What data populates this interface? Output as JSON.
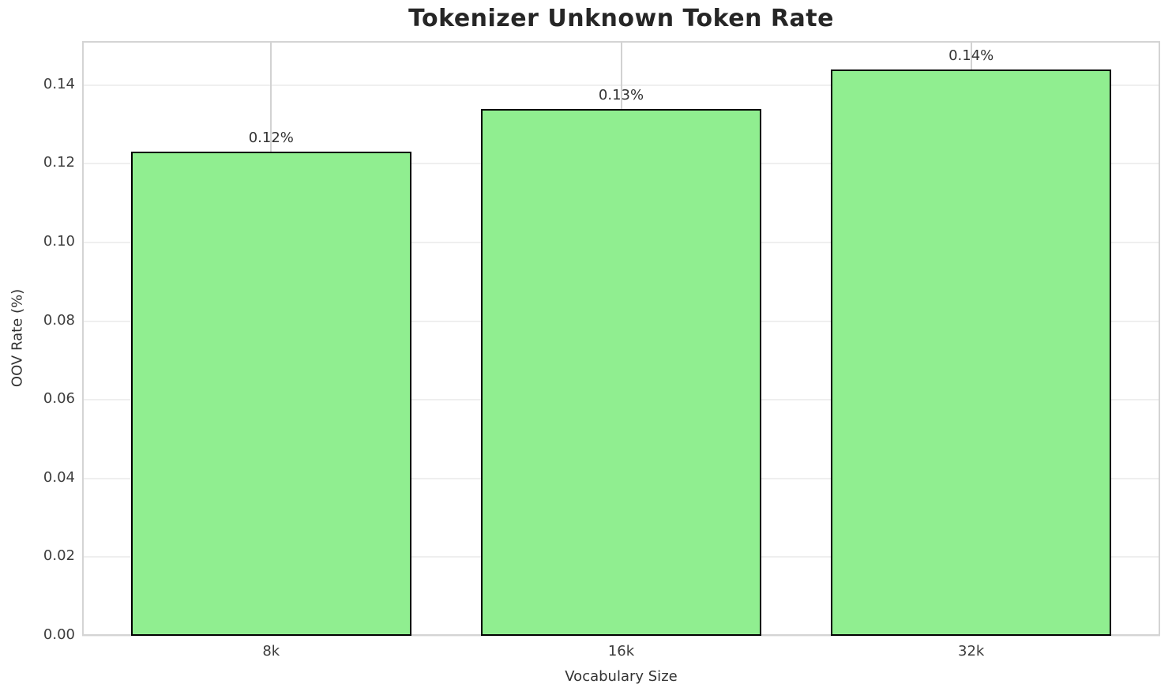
{
  "chart_data": {
    "type": "bar",
    "title": "Tokenizer Unknown Token Rate",
    "xlabel": "Vocabulary Size",
    "ylabel": "OOV Rate (%)",
    "categories": [
      "8k",
      "16k",
      "32k"
    ],
    "values": [
      0.123,
      0.134,
      0.144
    ],
    "bar_labels": [
      "0.12%",
      "0.13%",
      "0.14%"
    ],
    "yticks": [
      0.0,
      0.02,
      0.04,
      0.06,
      0.08,
      0.1,
      0.12,
      0.14
    ],
    "ytick_labels": [
      "0.00",
      "0.02",
      "0.04",
      "0.06",
      "0.08",
      "0.10",
      "0.12",
      "0.14"
    ],
    "ylim": [
      0,
      0.1512
    ],
    "grid": true,
    "legend_position": "none",
    "bar_color": "#90EE90",
    "bar_edge_color": "#000000"
  }
}
